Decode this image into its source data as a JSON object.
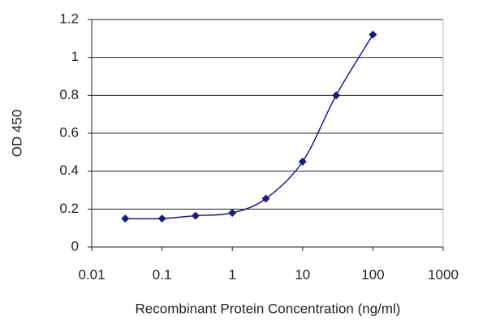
{
  "chart_data": {
    "type": "line",
    "x_label": "Recombinant Protein Concentration (ng/ml)",
    "y_label": "OD 450",
    "x": [
      0.03,
      0.1,
      0.3,
      1,
      3,
      10,
      30,
      100
    ],
    "series": [
      {
        "color": "#1c1c7c",
        "values": [
          0.15,
          0.15,
          0.165,
          0.18,
          0.255,
          0.45,
          0.8,
          1.12
        ]
      }
    ],
    "x_scale": "log",
    "xlim": [
      0.01,
      1000
    ],
    "xticks": [
      0.01,
      0.1,
      1,
      10,
      100,
      1000
    ],
    "ylim": [
      0,
      1.2
    ],
    "yticks": [
      0,
      0.2,
      0.4,
      0.6,
      0.8,
      1,
      1.2
    ],
    "grid": true
  }
}
